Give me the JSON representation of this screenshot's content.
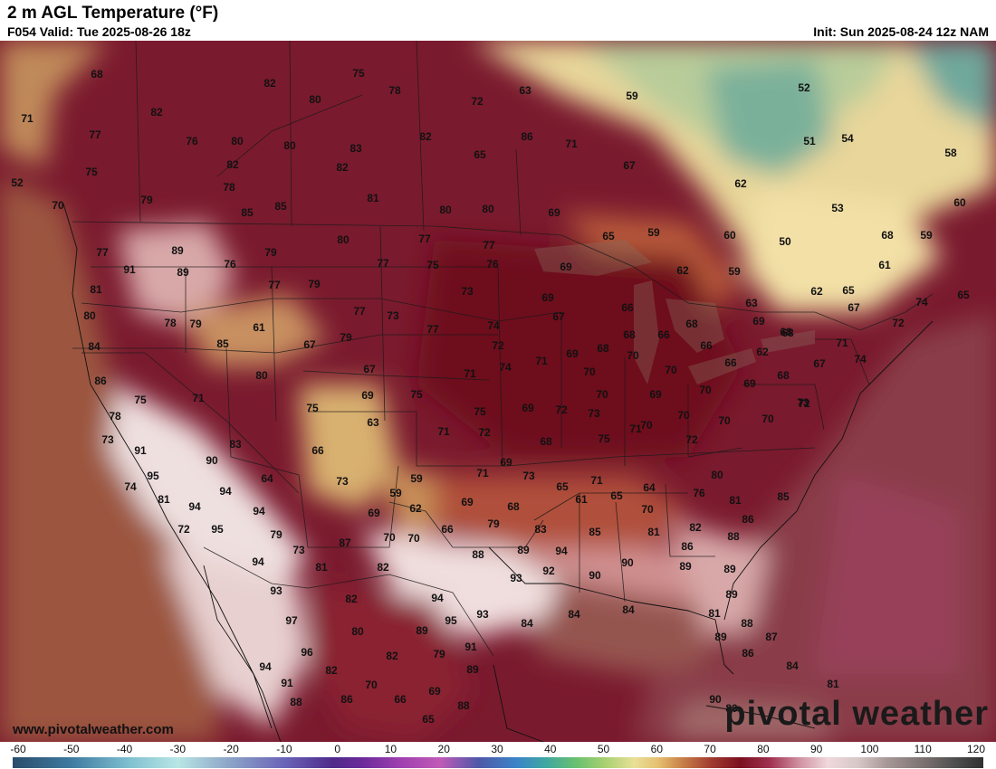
{
  "header": {
    "title": "2 m AGL Temperature (°F)",
    "valid": "F054 Valid: Tue 2025-08-26 18z",
    "init": "Init: Sun 2025-08-24 12z NAM"
  },
  "watermark": {
    "url": "www.pivotalweather.com",
    "brand": "pivotal weather"
  },
  "colorbar": {
    "ticks": [
      "-60",
      "-50",
      "-40",
      "-30",
      "-20",
      "-10",
      "0",
      "10",
      "20",
      "30",
      "40",
      "50",
      "60",
      "70",
      "80",
      "90",
      "100",
      "110",
      "120"
    ]
  },
  "map_labels": [
    {
      "t": "68"
    },
    {
      "t": "71"
    },
    {
      "t": "82"
    },
    {
      "t": "75"
    },
    {
      "t": "78"
    },
    {
      "t": "80"
    },
    {
      "t": "72"
    },
    {
      "t": "63"
    },
    {
      "t": "59"
    },
    {
      "t": "52"
    },
    {
      "t": "82"
    },
    {
      "t": "77"
    },
    {
      "t": "76"
    },
    {
      "t": "80"
    },
    {
      "t": "80"
    },
    {
      "t": "83"
    },
    {
      "t": "82"
    },
    {
      "t": "86"
    },
    {
      "t": "71"
    },
    {
      "t": "54"
    },
    {
      "t": "51"
    },
    {
      "t": "75"
    },
    {
      "t": "82"
    },
    {
      "t": "82"
    },
    {
      "t": "65"
    },
    {
      "t": "67"
    },
    {
      "t": "58"
    },
    {
      "t": "52"
    },
    {
      "t": "78"
    },
    {
      "t": "81"
    },
    {
      "t": "62"
    },
    {
      "t": "79"
    },
    {
      "t": "85"
    },
    {
      "t": "85"
    },
    {
      "t": "80"
    },
    {
      "t": "80"
    },
    {
      "t": "69"
    },
    {
      "t": "53"
    },
    {
      "t": "60"
    },
    {
      "t": "70"
    },
    {
      "t": "89"
    },
    {
      "t": "80"
    },
    {
      "t": "77"
    },
    {
      "t": "77"
    },
    {
      "t": "65"
    },
    {
      "t": "59"
    },
    {
      "t": "60"
    },
    {
      "t": "50"
    },
    {
      "t": "68"
    },
    {
      "t": "59"
    },
    {
      "t": "77"
    },
    {
      "t": "79"
    },
    {
      "t": "91"
    },
    {
      "t": "89"
    },
    {
      "t": "76"
    },
    {
      "t": "77"
    },
    {
      "t": "75"
    },
    {
      "t": "76"
    },
    {
      "t": "69"
    },
    {
      "t": "62"
    },
    {
      "t": "59"
    },
    {
      "t": "61"
    },
    {
      "t": "81"
    },
    {
      "t": "77"
    },
    {
      "t": "79"
    },
    {
      "t": "73"
    },
    {
      "t": "69"
    },
    {
      "t": "66"
    },
    {
      "t": "63"
    },
    {
      "t": "62"
    },
    {
      "t": "65"
    },
    {
      "t": "74"
    },
    {
      "t": "65"
    },
    {
      "t": "80"
    },
    {
      "t": "79"
    },
    {
      "t": "78"
    },
    {
      "t": "61"
    },
    {
      "t": "77"
    },
    {
      "t": "73"
    },
    {
      "t": "77"
    },
    {
      "t": "74"
    },
    {
      "t": "67"
    },
    {
      "t": "68"
    },
    {
      "t": "69"
    },
    {
      "t": "68"
    },
    {
      "t": "67"
    },
    {
      "t": "72"
    },
    {
      "t": "84"
    },
    {
      "t": "85"
    },
    {
      "t": "67"
    },
    {
      "t": "79"
    },
    {
      "t": "72"
    },
    {
      "t": "69"
    },
    {
      "t": "68"
    },
    {
      "t": "68"
    },
    {
      "t": "66"
    },
    {
      "t": "62"
    },
    {
      "t": "68"
    },
    {
      "t": "71"
    },
    {
      "t": "86"
    },
    {
      "t": "80"
    },
    {
      "t": "67"
    },
    {
      "t": "71"
    },
    {
      "t": "74"
    },
    {
      "t": "71"
    },
    {
      "t": "70"
    },
    {
      "t": "70"
    },
    {
      "t": "70"
    },
    {
      "t": "66"
    },
    {
      "t": "66"
    },
    {
      "t": "68"
    },
    {
      "t": "67"
    },
    {
      "t": "74"
    },
    {
      "t": "75"
    },
    {
      "t": "71"
    },
    {
      "t": "69"
    },
    {
      "t": "75"
    },
    {
      "t": "70"
    },
    {
      "t": "69"
    },
    {
      "t": "70"
    },
    {
      "t": "69"
    },
    {
      "t": "72"
    },
    {
      "t": "78"
    },
    {
      "t": "75"
    },
    {
      "t": "63"
    },
    {
      "t": "69"
    },
    {
      "t": "75"
    },
    {
      "t": "72"
    },
    {
      "t": "73"
    },
    {
      "t": "70"
    },
    {
      "t": "71"
    },
    {
      "t": "70"
    },
    {
      "t": "70"
    },
    {
      "t": "73"
    },
    {
      "t": "73"
    },
    {
      "t": "91"
    },
    {
      "t": "83"
    },
    {
      "t": "66"
    },
    {
      "t": "71"
    },
    {
      "t": "72"
    },
    {
      "t": "68"
    },
    {
      "t": "75"
    },
    {
      "t": "70"
    },
    {
      "t": "72"
    },
    {
      "t": "90"
    },
    {
      "t": "95"
    },
    {
      "t": "64"
    },
    {
      "t": "73"
    },
    {
      "t": "59"
    },
    {
      "t": "71"
    },
    {
      "t": "69"
    },
    {
      "t": "73"
    },
    {
      "t": "71"
    },
    {
      "t": "80"
    },
    {
      "t": "74"
    },
    {
      "t": "81"
    },
    {
      "t": "94"
    },
    {
      "t": "59"
    },
    {
      "t": "62"
    },
    {
      "t": "69"
    },
    {
      "t": "68"
    },
    {
      "t": "65"
    },
    {
      "t": "61"
    },
    {
      "t": "65"
    },
    {
      "t": "64"
    },
    {
      "t": "76"
    },
    {
      "t": "94"
    },
    {
      "t": "94"
    },
    {
      "t": "69"
    },
    {
      "t": "79"
    },
    {
      "t": "66"
    },
    {
      "t": "70"
    },
    {
      "t": "70"
    },
    {
      "t": "81"
    },
    {
      "t": "85"
    },
    {
      "t": "72"
    },
    {
      "t": "95"
    },
    {
      "t": "79"
    },
    {
      "t": "73"
    },
    {
      "t": "87"
    },
    {
      "t": "70"
    },
    {
      "t": "83"
    },
    {
      "t": "85"
    },
    {
      "t": "81"
    },
    {
      "t": "82"
    },
    {
      "t": "86"
    },
    {
      "t": "94"
    },
    {
      "t": "81"
    },
    {
      "t": "82"
    },
    {
      "t": "88"
    },
    {
      "t": "89"
    },
    {
      "t": "94"
    },
    {
      "t": "86"
    },
    {
      "t": "88"
    },
    {
      "t": "93"
    },
    {
      "t": "82"
    },
    {
      "t": "94"
    },
    {
      "t": "93"
    },
    {
      "t": "92"
    },
    {
      "t": "90"
    },
    {
      "t": "90"
    },
    {
      "t": "89"
    },
    {
      "t": "89"
    },
    {
      "t": "97"
    },
    {
      "t": "80"
    },
    {
      "t": "89"
    },
    {
      "t": "95"
    },
    {
      "t": "93"
    },
    {
      "t": "84"
    },
    {
      "t": "84"
    },
    {
      "t": "84"
    },
    {
      "t": "89"
    },
    {
      "t": "96"
    },
    {
      "t": "82"
    },
    {
      "t": "79"
    },
    {
      "t": "91"
    },
    {
      "t": "81"
    },
    {
      "t": "88"
    },
    {
      "t": "89"
    },
    {
      "t": "86"
    },
    {
      "t": "87"
    },
    {
      "t": "94"
    },
    {
      "t": "91"
    },
    {
      "t": "82"
    },
    {
      "t": "89"
    },
    {
      "t": "84"
    },
    {
      "t": "70"
    },
    {
      "t": "69"
    },
    {
      "t": "81"
    },
    {
      "t": "88"
    },
    {
      "t": "86"
    },
    {
      "t": "66"
    },
    {
      "t": "88"
    },
    {
      "t": "65"
    },
    {
      "t": "90"
    },
    {
      "t": "80"
    }
  ]
}
